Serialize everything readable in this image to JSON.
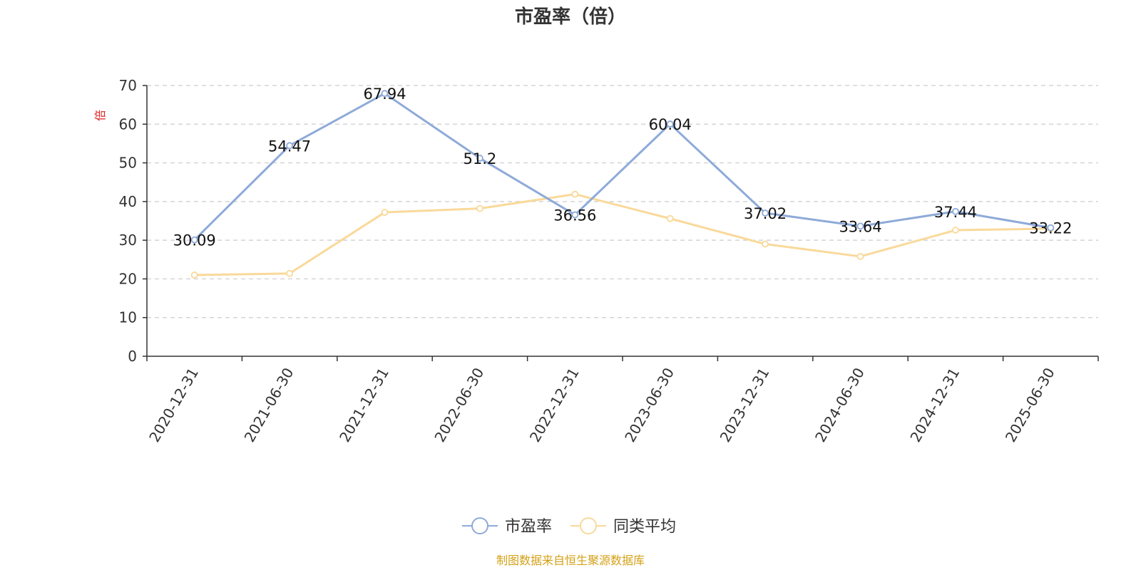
{
  "chart_data": {
    "type": "line",
    "title": "市盈率（倍）",
    "ylabel": "倍",
    "categories": [
      "2020-12-31",
      "2021-06-30",
      "2021-12-31",
      "2022-06-30",
      "2022-12-31",
      "2023-06-30",
      "2023-12-31",
      "2024-06-30",
      "2024-12-31",
      "2025-06-30"
    ],
    "ylim": [
      0,
      70
    ],
    "yticks": [
      0,
      10,
      20,
      30,
      40,
      50,
      60,
      70
    ],
    "grid": true,
    "legend_position": "bottom-center",
    "series": [
      {
        "name": "市盈率",
        "color": "#8eaad8",
        "values": [
          30.09,
          54.47,
          67.94,
          51.2,
          36.56,
          60.04,
          37.02,
          33.64,
          37.44,
          33.22
        ],
        "labels": [
          "30.09",
          "54.47",
          "67.94",
          "51.2",
          "36.56",
          "60.04",
          "37.02",
          "33.64",
          "37.44",
          "33.22"
        ]
      },
      {
        "name": "同类平均",
        "color": "#f9d99a",
        "values": [
          21.0,
          21.4,
          37.2,
          38.2,
          41.9,
          35.6,
          29.0,
          25.8,
          32.6,
          33.0
        ]
      }
    ],
    "ylabel_color": "#e02020"
  },
  "footer": {
    "source": "制图数据来自恒生聚源数据库",
    "source_color": "#d4a017"
  }
}
